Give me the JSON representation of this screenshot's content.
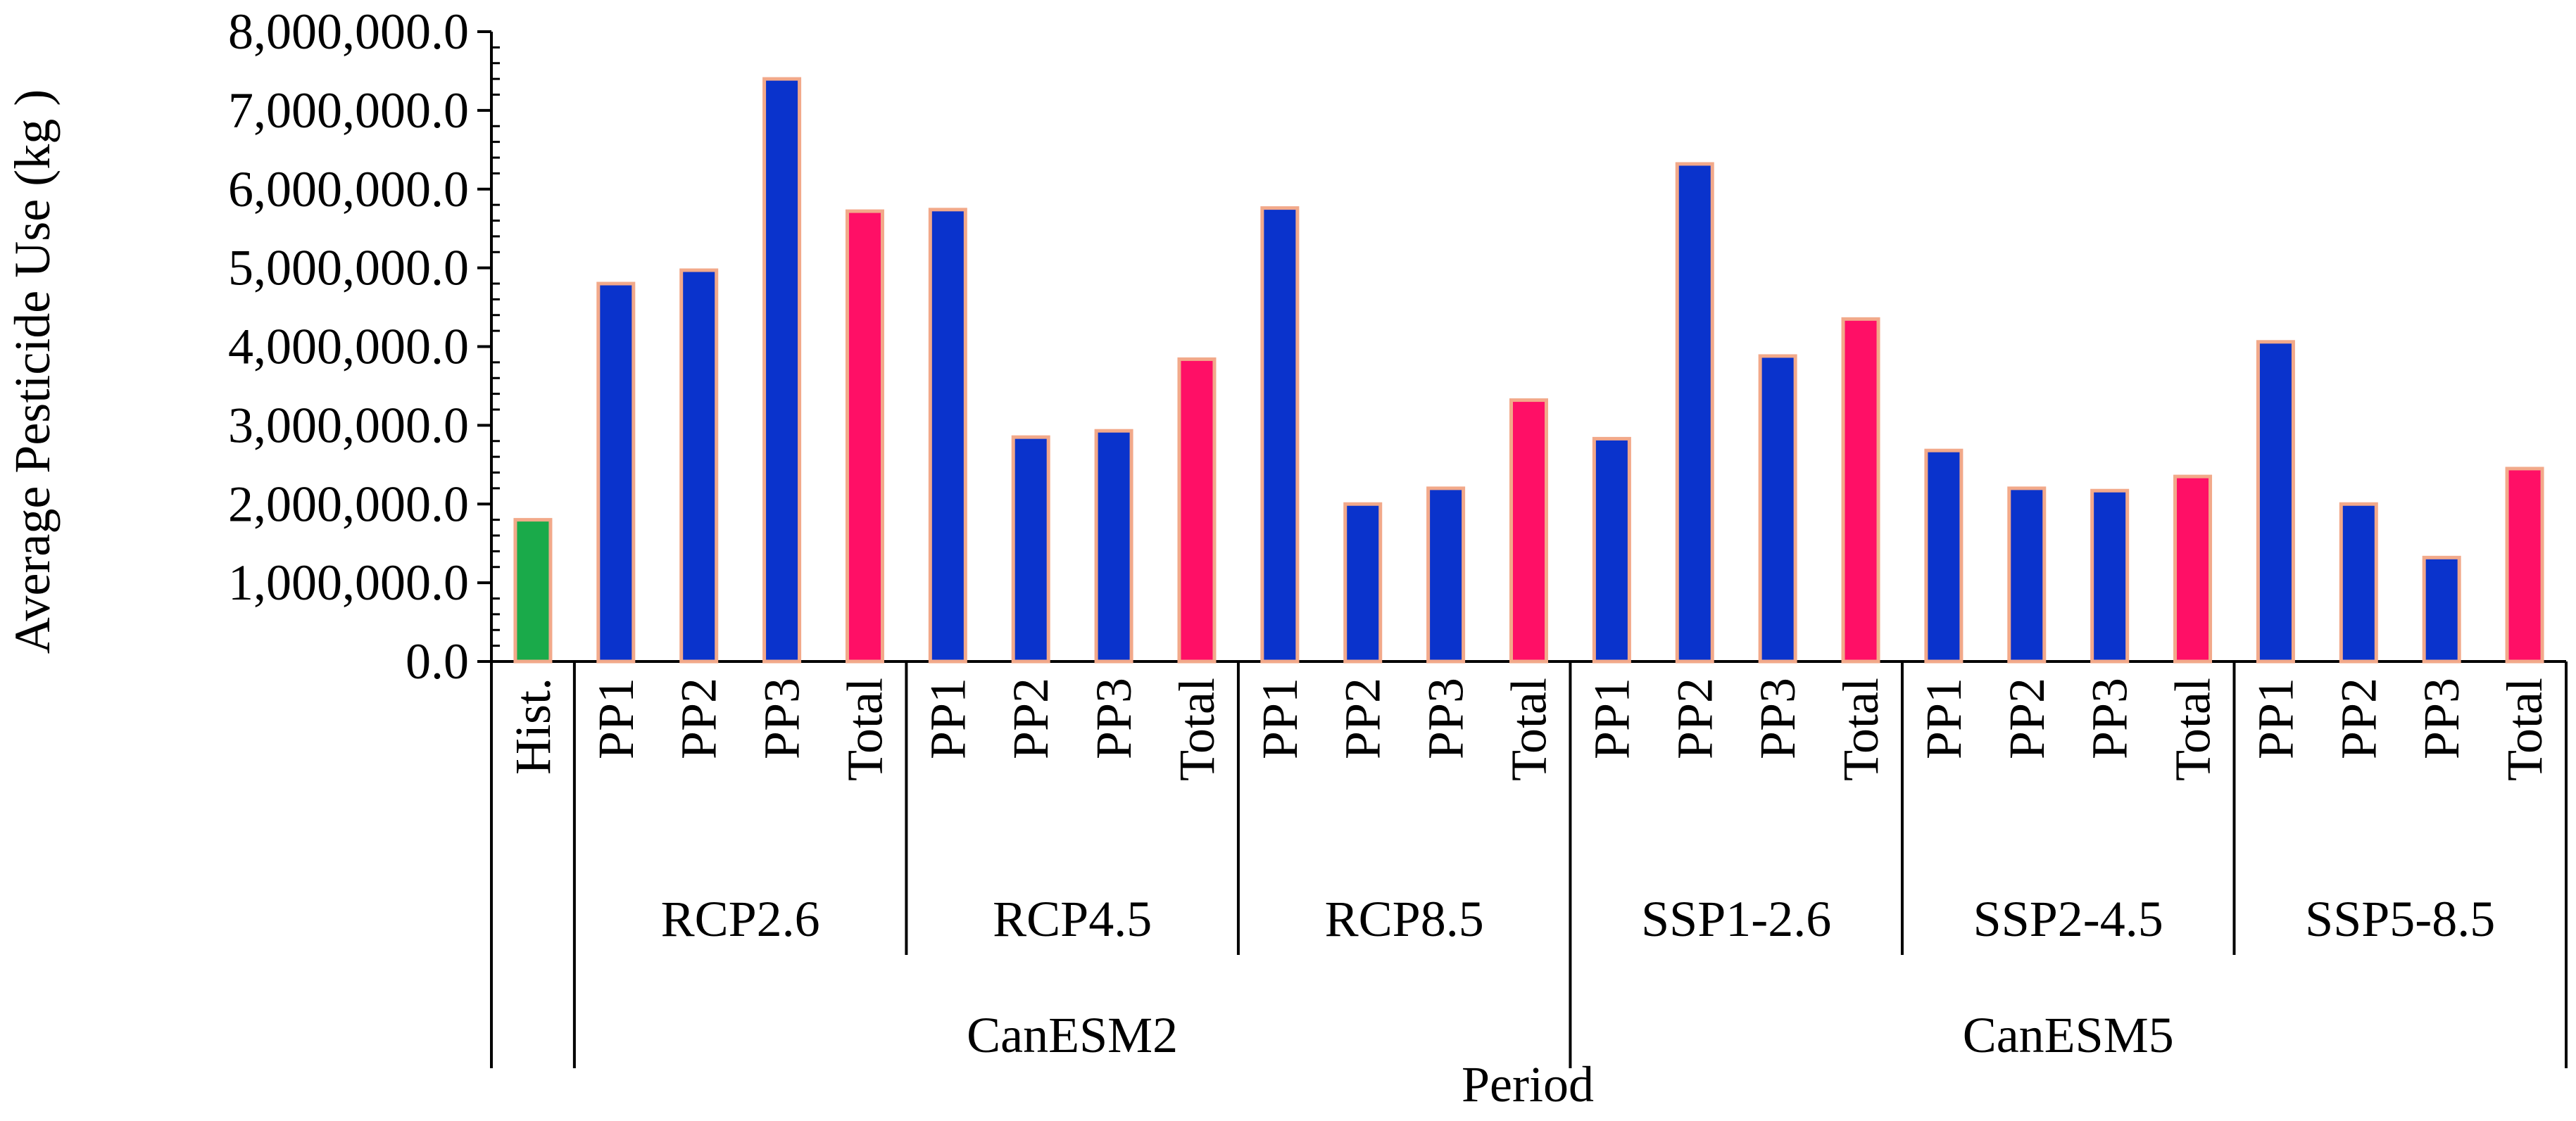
{
  "chart_data": {
    "type": "bar",
    "title": "",
    "ylabel": "Average Pesticide Use (kg )",
    "xlabel": "Period",
    "ylim": [
      0,
      8000000
    ],
    "yticks": [
      0,
      1000000,
      2000000,
      3000000,
      4000000,
      5000000,
      6000000,
      7000000,
      8000000
    ],
    "ytick_labels": [
      "0.0",
      "1,000,000.0",
      "2,000,000.0",
      "3,000,000.0",
      "4,000,000.0",
      "5,000,000.0",
      "6,000,000.0",
      "7,000,000.0",
      "8,000,000.0"
    ],
    "colors": {
      "historical": "#1aaa4a",
      "projection": "#0a33cc",
      "total": "#ff0f66",
      "bar_edge": "#f2a98a",
      "axis": "#000000"
    },
    "bars": [
      {
        "label": "Hist.",
        "scenario": "",
        "model": "",
        "kind": "historical",
        "value": 1800000
      },
      {
        "label": "PP1",
        "scenario": "RCP2.6",
        "model": "CanESM2",
        "kind": "projection",
        "value": 4800000
      },
      {
        "label": "PP2",
        "scenario": "RCP2.6",
        "model": "CanESM2",
        "kind": "projection",
        "value": 4970000
      },
      {
        "label": "PP3",
        "scenario": "RCP2.6",
        "model": "CanESM2",
        "kind": "projection",
        "value": 7400000
      },
      {
        "label": "Total",
        "scenario": "RCP2.6",
        "model": "CanESM2",
        "kind": "total",
        "value": 5720000
      },
      {
        "label": "PP1",
        "scenario": "RCP4.5",
        "model": "CanESM2",
        "kind": "projection",
        "value": 5740000
      },
      {
        "label": "PP2",
        "scenario": "RCP4.5",
        "model": "CanESM2",
        "kind": "projection",
        "value": 2850000
      },
      {
        "label": "PP3",
        "scenario": "RCP4.5",
        "model": "CanESM2",
        "kind": "projection",
        "value": 2930000
      },
      {
        "label": "Total",
        "scenario": "RCP4.5",
        "model": "CanESM2",
        "kind": "total",
        "value": 3840000
      },
      {
        "label": "PP1",
        "scenario": "RCP8.5",
        "model": "CanESM2",
        "kind": "projection",
        "value": 5760000
      },
      {
        "label": "PP2",
        "scenario": "RCP8.5",
        "model": "CanESM2",
        "kind": "projection",
        "value": 2000000
      },
      {
        "label": "PP3",
        "scenario": "RCP8.5",
        "model": "CanESM2",
        "kind": "projection",
        "value": 2200000
      },
      {
        "label": "Total",
        "scenario": "RCP8.5",
        "model": "CanESM2",
        "kind": "total",
        "value": 3320000
      },
      {
        "label": "PP1",
        "scenario": "SSP1-2.6",
        "model": "CanESM5",
        "kind": "projection",
        "value": 2830000
      },
      {
        "label": "PP2",
        "scenario": "SSP1-2.6",
        "model": "CanESM5",
        "kind": "projection",
        "value": 6320000
      },
      {
        "label": "PP3",
        "scenario": "SSP1-2.6",
        "model": "CanESM5",
        "kind": "projection",
        "value": 3880000
      },
      {
        "label": "Total",
        "scenario": "SSP1-2.6",
        "model": "CanESM5",
        "kind": "total",
        "value": 4350000
      },
      {
        "label": "PP1",
        "scenario": "SSP2-4.5",
        "model": "CanESM5",
        "kind": "projection",
        "value": 2680000
      },
      {
        "label": "PP2",
        "scenario": "SSP2-4.5",
        "model": "CanESM5",
        "kind": "projection",
        "value": 2200000
      },
      {
        "label": "PP3",
        "scenario": "SSP2-4.5",
        "model": "CanESM5",
        "kind": "projection",
        "value": 2170000
      },
      {
        "label": "Total",
        "scenario": "SSP2-4.5",
        "model": "CanESM5",
        "kind": "total",
        "value": 2350000
      },
      {
        "label": "PP1",
        "scenario": "SSP5-8.5",
        "model": "CanESM5",
        "kind": "projection",
        "value": 4060000
      },
      {
        "label": "PP2",
        "scenario": "SSP5-8.5",
        "model": "CanESM5",
        "kind": "projection",
        "value": 2000000
      },
      {
        "label": "PP3",
        "scenario": "SSP5-8.5",
        "model": "CanESM5",
        "kind": "projection",
        "value": 1320000
      },
      {
        "label": "Total",
        "scenario": "SSP5-8.5",
        "model": "CanESM5",
        "kind": "total",
        "value": 2450000
      }
    ],
    "scenario_groups": [
      "RCP2.6",
      "RCP4.5",
      "RCP8.5",
      "SSP1-2.6",
      "SSP2-4.5",
      "SSP5-8.5"
    ],
    "model_groups": [
      "CanESM2",
      "CanESM5"
    ]
  }
}
